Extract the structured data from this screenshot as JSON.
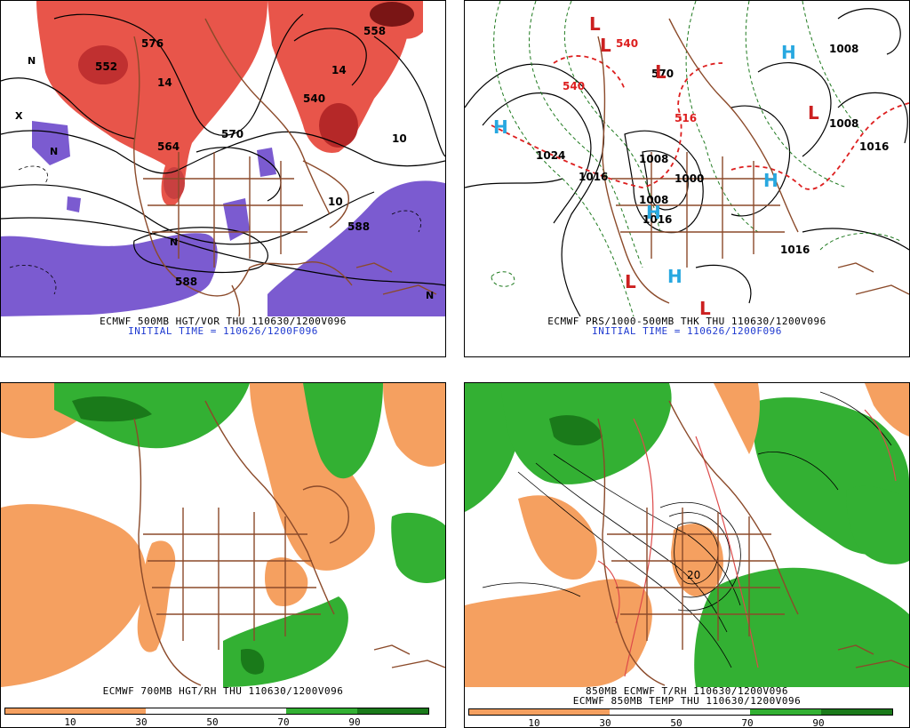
{
  "panels": {
    "top_left": {
      "caption1": "ECMWF 500MB HGT/VOR THU 110630/1200V096",
      "caption2": "INITIAL TIME = 110626/1200F096",
      "labels": [
        "552",
        "576",
        "588",
        "588",
        "558",
        "540",
        "564",
        "570",
        "14",
        "14",
        "10",
        "10",
        "N",
        "N",
        "N",
        "N",
        "X"
      ]
    },
    "top_right": {
      "caption1": "ECMWF PRS/1000-500MB THK THU 110630/1200V096",
      "caption2": "INITIAL TIME = 110626/1200F096",
      "labels": [
        "1024",
        "1016",
        "1008",
        "1000",
        "1008",
        "1016",
        "1016",
        "1008",
        "1016",
        "540",
        "540",
        "516",
        "570",
        "1008"
      ],
      "highs": [
        "H",
        "H",
        "H",
        "H",
        "H"
      ],
      "lows": [
        "L",
        "L",
        "L",
        "L",
        "L",
        "L"
      ]
    },
    "bottom_left": {
      "caption1": "ECMWF 700MB HGT/RH THU 110630/1200V096",
      "colorbar_ticks": [
        "10",
        "30",
        "50",
        "70",
        "90"
      ]
    },
    "bottom_right": {
      "caption1": "850MB ECMWF T/RH 110630/1200V096",
      "caption2": "ECMWF 850MB TEMP THU 110630/1200V096",
      "colorbar_ticks": [
        "10",
        "30",
        "50",
        "70",
        "90"
      ],
      "labels": [
        "20"
      ]
    }
  },
  "colors": {
    "vorticity_red": "#e8554a",
    "vorticity_dark": "#9a1a1a",
    "vorticity_purple": "#7b5bd0",
    "rh_dry": "#f5a060",
    "rh_green": "#33b033",
    "rh_dark_green": "#1a7a1a",
    "borders": "#8b4a2a",
    "thickness_red": "#dd1f1f",
    "high_blue": "#28a8e0",
    "low_red": "#cc2020"
  }
}
